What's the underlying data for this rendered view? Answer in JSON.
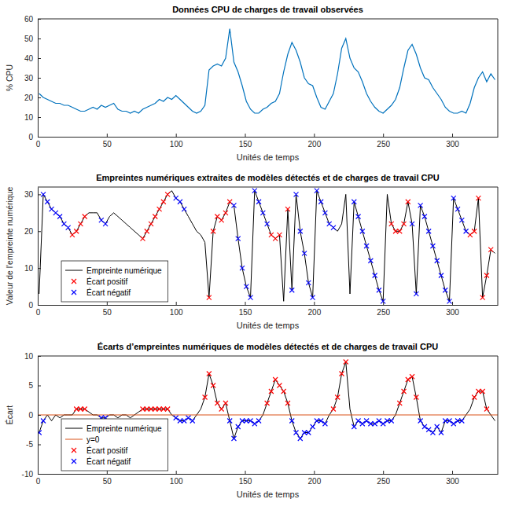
{
  "chart_data": [
    {
      "type": "line",
      "title": "Données CPU de charges de travail observées",
      "xlabel": "Unités de temps",
      "ylabel": "% CPU",
      "xlim": [
        0,
        333
      ],
      "ylim": [
        0,
        60
      ],
      "xticks": [
        0,
        50,
        100,
        150,
        200,
        250,
        300
      ],
      "yticks": [
        0,
        10,
        20,
        30,
        40,
        50,
        60
      ],
      "grid": false,
      "series": [
        {
          "color": "#0072BD",
          "type": "line",
          "x": [
            1,
            4,
            7,
            10,
            13,
            16,
            19,
            22,
            25,
            28,
            31,
            34,
            37,
            40,
            43,
            46,
            49,
            52,
            55,
            58,
            61,
            64,
            67,
            70,
            73,
            76,
            79,
            82,
            85,
            88,
            91,
            94,
            97,
            100,
            103,
            106,
            109,
            112,
            115,
            118,
            121,
            124,
            127,
            130,
            133,
            136,
            139,
            142,
            145,
            148,
            151,
            154,
            157,
            160,
            163,
            166,
            169,
            172,
            175,
            178,
            181,
            184,
            187,
            190,
            193,
            196,
            199,
            202,
            205,
            208,
            211,
            214,
            217,
            220,
            223,
            226,
            229,
            232,
            235,
            238,
            241,
            244,
            247,
            250,
            253,
            256,
            259,
            262,
            265,
            268,
            271,
            274,
            277,
            280,
            283,
            286,
            289,
            292,
            295,
            298,
            301,
            304,
            307,
            310,
            313,
            316,
            319,
            322,
            325,
            328,
            331
          ],
          "values": [
            22,
            20,
            19,
            18,
            17,
            17,
            16,
            16,
            15,
            14,
            13,
            13,
            14,
            15,
            14,
            16,
            15,
            16,
            17,
            14,
            13,
            13,
            12,
            13,
            12,
            14,
            15,
            16,
            17,
            19,
            18,
            20,
            19,
            21,
            19,
            17,
            15,
            13,
            12,
            13,
            16,
            34,
            36,
            37,
            36,
            40,
            55,
            38,
            33,
            26,
            18,
            14,
            12,
            12,
            14,
            15,
            17,
            18,
            22,
            33,
            42,
            48,
            44,
            38,
            30,
            27,
            26,
            20,
            15,
            14,
            18,
            22,
            32,
            45,
            50,
            40,
            35,
            33,
            28,
            22,
            18,
            15,
            13,
            12,
            14,
            16,
            19,
            25,
            35,
            44,
            47,
            42,
            35,
            30,
            29,
            25,
            22,
            19,
            15,
            13,
            12,
            12,
            13,
            12,
            17,
            25,
            30,
            33,
            28,
            32,
            29
          ]
        }
      ]
    },
    {
      "type": "line",
      "title": "Empreintes numériques extraites de modèles détectés et de charges de travail CPU",
      "xlabel": "Unités de temps",
      "ylabel": "Valeur de l'empreinte numérique",
      "xlim": [
        0,
        333
      ],
      "ylim": [
        0,
        32
      ],
      "xticks": [
        0,
        50,
        100,
        150,
        200,
        250,
        300
      ],
      "yticks": [
        0,
        10,
        20,
        30
      ],
      "grid": false,
      "legend": "lower left",
      "series": [
        {
          "name": "Empreinte numérique",
          "color": "#000000",
          "type": "line",
          "line_style": "solid",
          "x": [
            1,
            4,
            7,
            10,
            13,
            16,
            19,
            22,
            25,
            28,
            31,
            34,
            37,
            40,
            43,
            46,
            49,
            52,
            55,
            58,
            61,
            64,
            67,
            70,
            73,
            76,
            79,
            82,
            85,
            88,
            91,
            94,
            97,
            100,
            103,
            106,
            109,
            112,
            115,
            118,
            121,
            124,
            127,
            130,
            133,
            136,
            139,
            142,
            145,
            148,
            151,
            154,
            157,
            160,
            163,
            166,
            169,
            172,
            175,
            178,
            181,
            184,
            187,
            190,
            193,
            196,
            199,
            202,
            205,
            208,
            211,
            214,
            217,
            220,
            223,
            226,
            229,
            232,
            235,
            238,
            241,
            244,
            247,
            250,
            253,
            256,
            259,
            262,
            265,
            268,
            271,
            274,
            277,
            280,
            283,
            286,
            289,
            292,
            295,
            298,
            301,
            304,
            307,
            310,
            313,
            316,
            319,
            322,
            325,
            328,
            331
          ],
          "values": [
            3,
            30,
            28,
            26,
            25,
            24,
            22,
            21,
            19,
            20,
            22,
            24,
            25,
            25,
            25,
            23,
            22,
            24,
            25,
            24,
            23,
            22,
            21,
            20,
            19,
            18,
            20,
            22,
            24,
            26,
            28,
            30,
            31,
            29,
            28,
            26,
            24,
            22,
            20,
            19,
            17,
            2,
            20,
            24,
            23,
            25,
            28,
            27,
            18,
            10,
            5,
            2,
            31,
            28,
            25,
            22,
            19,
            18,
            19,
            1,
            26,
            4,
            30,
            20,
            14,
            6,
            2,
            31,
            28,
            25,
            22,
            21,
            20,
            22,
            30,
            3,
            28,
            24,
            20,
            16,
            12,
            8,
            4,
            1,
            30,
            22,
            20,
            20,
            22,
            28,
            22,
            3,
            27,
            24,
            20,
            16,
            12,
            8,
            4,
            1,
            29,
            26,
            23,
            20,
            19,
            20,
            29,
            2,
            8,
            15,
            14
          ]
        },
        {
          "name": "Écart positif",
          "color": "#FF0000",
          "type": "scatter",
          "marker": "x",
          "x": [
            25,
            28,
            31,
            34,
            76,
            79,
            82,
            85,
            88,
            91,
            94,
            124,
            127,
            130,
            133,
            136,
            139,
            169,
            172,
            175,
            181,
            256,
            259,
            262,
            265,
            268,
            313,
            316,
            319,
            322,
            325,
            328
          ],
          "values": [
            19,
            20,
            22,
            24,
            18,
            20,
            22,
            24,
            26,
            28,
            30,
            2,
            20,
            24,
            23,
            25,
            28,
            19,
            18,
            19,
            26,
            22,
            20,
            20,
            22,
            28,
            19,
            20,
            29,
            2,
            8,
            15
          ]
        },
        {
          "name": "Écart négatif",
          "color": "#0000FF",
          "type": "scatter",
          "marker": "x",
          "x": [
            4,
            7,
            10,
            13,
            16,
            19,
            22,
            46,
            49,
            100,
            103,
            106,
            142,
            145,
            148,
            151,
            154,
            157,
            160,
            163,
            166,
            184,
            187,
            190,
            193,
            196,
            199,
            202,
            205,
            208,
            211,
            214,
            229,
            232,
            235,
            238,
            241,
            244,
            247,
            250,
            271,
            274,
            277,
            280,
            283,
            286,
            289,
            292,
            295,
            298,
            301,
            304,
            307,
            310
          ],
          "values": [
            30,
            28,
            26,
            25,
            24,
            22,
            21,
            23,
            22,
            29,
            28,
            26,
            27,
            18,
            10,
            5,
            2,
            31,
            28,
            25,
            22,
            4,
            30,
            20,
            14,
            6,
            2,
            31,
            28,
            25,
            22,
            21,
            28,
            24,
            20,
            16,
            12,
            8,
            4,
            1,
            22,
            3,
            27,
            24,
            20,
            16,
            12,
            8,
            4,
            1,
            29,
            26,
            23,
            20
          ]
        }
      ]
    },
    {
      "type": "line",
      "title": "Écarts d’empreintes numériques de modèles détectés et de charges de travail CPU",
      "xlabel": "Unités de temps",
      "ylabel": "Écart",
      "xlim": [
        0,
        333
      ],
      "ylim": [
        -10,
        10
      ],
      "xticks": [
        0,
        50,
        100,
        150,
        200,
        250,
        300
      ],
      "yticks": [
        -10,
        -5,
        0,
        5,
        10
      ],
      "grid": false,
      "legend": "lower left",
      "series": [
        {
          "name": "Empreinte numérique",
          "color": "#000000",
          "type": "line",
          "line_style": "solid",
          "x": [
            1,
            4,
            7,
            10,
            13,
            16,
            19,
            22,
            25,
            28,
            31,
            34,
            37,
            40,
            43,
            46,
            49,
            52,
            55,
            58,
            61,
            64,
            67,
            70,
            73,
            76,
            79,
            82,
            85,
            88,
            91,
            94,
            97,
            100,
            103,
            106,
            109,
            112,
            115,
            118,
            121,
            124,
            127,
            130,
            133,
            136,
            139,
            142,
            145,
            148,
            151,
            154,
            157,
            160,
            163,
            166,
            169,
            172,
            175,
            178,
            181,
            184,
            187,
            190,
            193,
            196,
            199,
            202,
            205,
            208,
            211,
            214,
            217,
            220,
            223,
            226,
            229,
            232,
            235,
            238,
            241,
            244,
            247,
            250,
            253,
            256,
            259,
            262,
            265,
            268,
            271,
            274,
            277,
            280,
            283,
            286,
            289,
            292,
            295,
            298,
            301,
            304,
            307,
            310,
            313,
            316,
            319,
            322,
            325,
            328,
            331
          ],
          "values": [
            -3,
            -1,
            0,
            -1,
            0,
            -0.5,
            0,
            0,
            0,
            1,
            1,
            1,
            0.5,
            0,
            0,
            -0.5,
            -0.5,
            0,
            0,
            -0.5,
            0,
            0,
            -0.5,
            0,
            0.5,
            1,
            1,
            1,
            1,
            1,
            1,
            1,
            0,
            -0.5,
            -1,
            -1,
            -0.5,
            -1,
            0,
            1,
            3,
            7,
            5,
            2,
            1,
            2,
            -1,
            -4,
            -2,
            -1,
            -1,
            -1,
            -1.5,
            -1,
            0,
            2,
            4,
            6,
            5,
            4,
            2,
            -1,
            -3,
            -4,
            -3,
            -3,
            -2,
            -1,
            -1,
            -1.5,
            0,
            1,
            3,
            7,
            9,
            1,
            -2,
            -1,
            -1.5,
            -1,
            -1.5,
            -1.5,
            -1,
            -1.5,
            -1,
            -1,
            0,
            2,
            4,
            6,
            6.5,
            3,
            -1,
            -2,
            -2.5,
            -3,
            -2,
            -3,
            -1,
            -1,
            -1.5,
            -1,
            -1,
            0,
            1,
            3,
            4,
            4,
            1,
            0,
            -1
          ]
        },
        {
          "name": "y=0",
          "color": "#D95319",
          "type": "line",
          "line_style": "solid",
          "x": [
            0,
            333
          ],
          "values": [
            0,
            0
          ]
        },
        {
          "name": "Écart positif",
          "color": "#FF0000",
          "type": "scatter",
          "marker": "x",
          "x": [
            28,
            31,
            34,
            76,
            79,
            82,
            85,
            88,
            91,
            94,
            121,
            124,
            127,
            130,
            133,
            136,
            166,
            169,
            172,
            175,
            178,
            181,
            214,
            217,
            220,
            223,
            262,
            265,
            268,
            271,
            274,
            316,
            319,
            322,
            325
          ],
          "values": [
            1,
            1,
            1,
            1,
            1,
            1,
            1,
            1,
            1,
            1,
            3,
            7,
            5,
            2,
            1,
            2,
            2,
            4,
            6,
            5,
            4,
            2,
            1,
            3,
            7,
            9,
            2,
            4,
            6,
            6.5,
            3,
            3,
            4,
            4,
            1
          ]
        },
        {
          "name": "Écart négatif",
          "color": "#0000FF",
          "type": "scatter",
          "marker": "x",
          "x": [
            1,
            4,
            46,
            49,
            100,
            103,
            106,
            109,
            112,
            139,
            142,
            145,
            148,
            151,
            154,
            157,
            160,
            184,
            187,
            190,
            193,
            196,
            199,
            202,
            205,
            208,
            229,
            232,
            235,
            238,
            241,
            244,
            247,
            250,
            253,
            256,
            277,
            280,
            283,
            286,
            289,
            292,
            295,
            298,
            301,
            304,
            307
          ],
          "values": [
            -3,
            -1,
            -0.5,
            -0.5,
            -0.5,
            -1,
            -1,
            -0.5,
            -1,
            -1,
            -4,
            -2,
            -1,
            -1,
            -1,
            -1.5,
            -1,
            -1,
            -3,
            -4,
            -3,
            -3,
            -2,
            -1,
            -1,
            -1.5,
            -2,
            -1,
            -1.5,
            -1,
            -1.5,
            -1.5,
            -1,
            -1.5,
            -1,
            -1,
            -1,
            -2,
            -2.5,
            -3,
            -2,
            -3,
            -1,
            -1,
            -1.5,
            -1,
            -1
          ]
        }
      ]
    }
  ]
}
